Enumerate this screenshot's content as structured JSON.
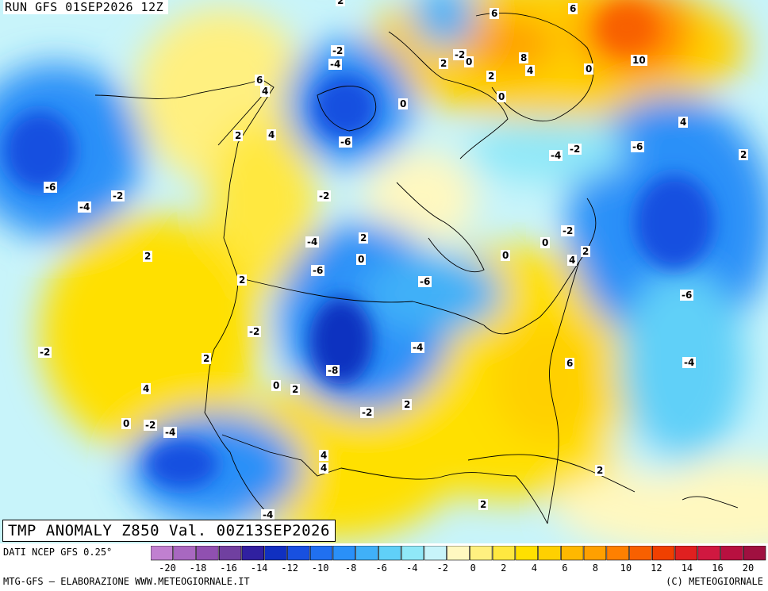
{
  "header": {
    "run_title": "RUN GFS 01SEP2026 12Z",
    "field_title": "TMP ANOMALY Z850 Val. 00Z13SEP2026"
  },
  "footer": {
    "data_source": "DATI NCEP GFS 0.25°",
    "credit_left": "MTG-GFS — ELABORAZIONE WWW.METEOGIORNALE.IT",
    "credit_right": "(C) METEOGIORNALE"
  },
  "legend": {
    "tick_labels": [
      "-20",
      "-18",
      "-16",
      "-14",
      "-12",
      "-10",
      "-8",
      "-6",
      "-4",
      "-2",
      "0",
      "2",
      "4",
      "6",
      "8",
      "10",
      "12",
      "14",
      "16",
      "20"
    ],
    "colors": [
      "#c080d0",
      "#a868c0",
      "#9050b0",
      "#7040a0",
      "#3020a0",
      "#1030c0",
      "#1850e0",
      "#2070f0",
      "#2a90f8",
      "#40b0f8",
      "#60d0f8",
      "#90e8f8",
      "#c8f4fa",
      "#fff8c0",
      "#fff080",
      "#ffe840",
      "#ffe000",
      "#ffd000",
      "#ffb800",
      "#ffa000",
      "#ff8000",
      "#f86000",
      "#f04000",
      "#e02020",
      "#d01840",
      "#b81040",
      "#a01040"
    ]
  },
  "contour_labels": [
    {
      "text": "2"
    },
    {
      "text": "6"
    },
    {
      "text": "6"
    },
    {
      "text": "-2"
    },
    {
      "text": "-4"
    },
    {
      "text": "-2"
    },
    {
      "text": "0"
    },
    {
      "text": "2"
    },
    {
      "text": "8"
    },
    {
      "text": "4"
    },
    {
      "text": "10"
    },
    {
      "text": "0"
    },
    {
      "text": "2"
    },
    {
      "text": "0"
    },
    {
      "text": "6"
    },
    {
      "text": "4"
    },
    {
      "text": "0"
    },
    {
      "text": "2"
    },
    {
      "text": "4"
    },
    {
      "text": "-6"
    },
    {
      "text": "4"
    },
    {
      "text": "2"
    },
    {
      "text": "-6"
    },
    {
      "text": "-4"
    },
    {
      "text": "-2"
    },
    {
      "text": "-6"
    },
    {
      "text": "-2"
    },
    {
      "text": "-4"
    },
    {
      "text": "-2"
    },
    {
      "text": "-4"
    },
    {
      "text": "2"
    },
    {
      "text": "0"
    },
    {
      "text": "2"
    },
    {
      "text": "0"
    },
    {
      "text": "0"
    },
    {
      "text": "-2"
    },
    {
      "text": "4"
    },
    {
      "text": "2"
    },
    {
      "text": "-6"
    },
    {
      "text": "-6"
    },
    {
      "text": "2"
    },
    {
      "text": "-6"
    },
    {
      "text": "-2"
    },
    {
      "text": "-2"
    },
    {
      "text": "-4"
    },
    {
      "text": "2"
    },
    {
      "text": "-8"
    },
    {
      "text": "-4"
    },
    {
      "text": "6"
    },
    {
      "text": "4"
    },
    {
      "text": "0"
    },
    {
      "text": "2"
    },
    {
      "text": "-2"
    },
    {
      "text": "2"
    },
    {
      "text": "0"
    },
    {
      "text": "-2"
    },
    {
      "text": "-4"
    },
    {
      "text": "4"
    },
    {
      "text": "4"
    },
    {
      "text": "2"
    },
    {
      "text": "2"
    },
    {
      "text": "-4"
    }
  ]
}
